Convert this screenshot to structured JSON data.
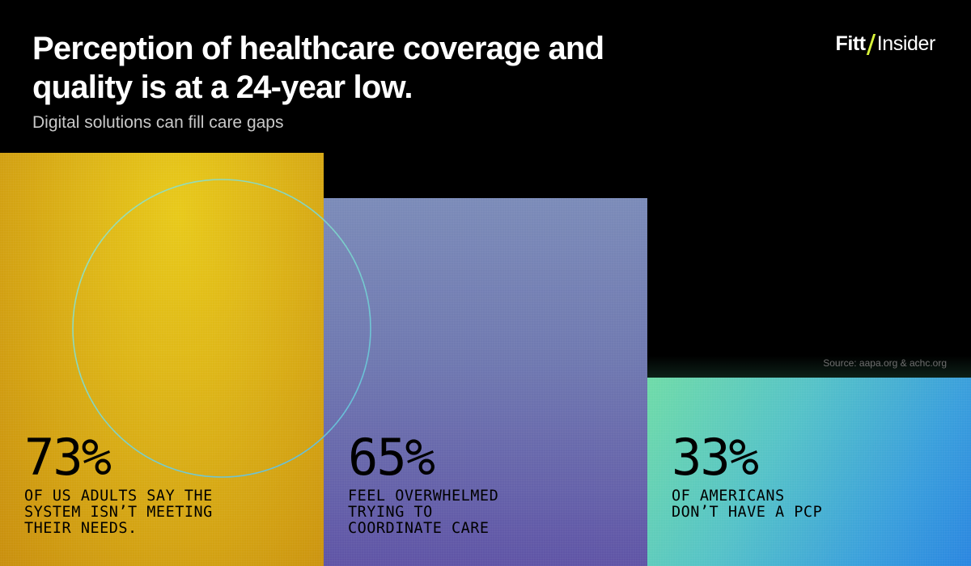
{
  "header": {
    "title": "Perception of healthcare coverage and\nquality is at a 24-year low.",
    "subtitle": "Digital solutions can fill care gaps"
  },
  "logo": {
    "brand": "Fitt",
    "name": "Insider"
  },
  "source": "Source: aapa.org & achc.org",
  "colors": {
    "background": "#000000",
    "panel_yellow": "#dcb317",
    "panel_purple": "#6f78b0",
    "panel_teal_blue": "#3a9fdc",
    "logo_accent": "#d7f23a"
  },
  "chart_data": {
    "type": "bar",
    "title": "Perception of healthcare coverage and quality is at a 24-year low.",
    "subtitle": "Digital solutions can fill care gaps",
    "categories": [
      "OF US ADULTS SAY THE SYSTEM ISN'T MEETING THEIR NEEDS.",
      "FEEL OVERWHELMED TRYING TO COORDINATE CARE",
      "OF AMERICANS DON'T HAVE A PCP"
    ],
    "values": [
      73,
      65,
      33
    ],
    "units": "%",
    "ylim": [
      0,
      100
    ],
    "stats": [
      {
        "value": "73%",
        "label": "OF US ADULTS SAY THE\nSYSTEM ISN’T MEETING\nTHEIR NEEDS."
      },
      {
        "value": "65%",
        "label": "FEEL OVERWHELMED\nTRYING TO\nCOORDINATE CARE"
      },
      {
        "value": "33%",
        "label": "OF AMERICANS\nDON’T HAVE A PCP"
      }
    ],
    "source": "Source: aapa.org & achc.org"
  }
}
